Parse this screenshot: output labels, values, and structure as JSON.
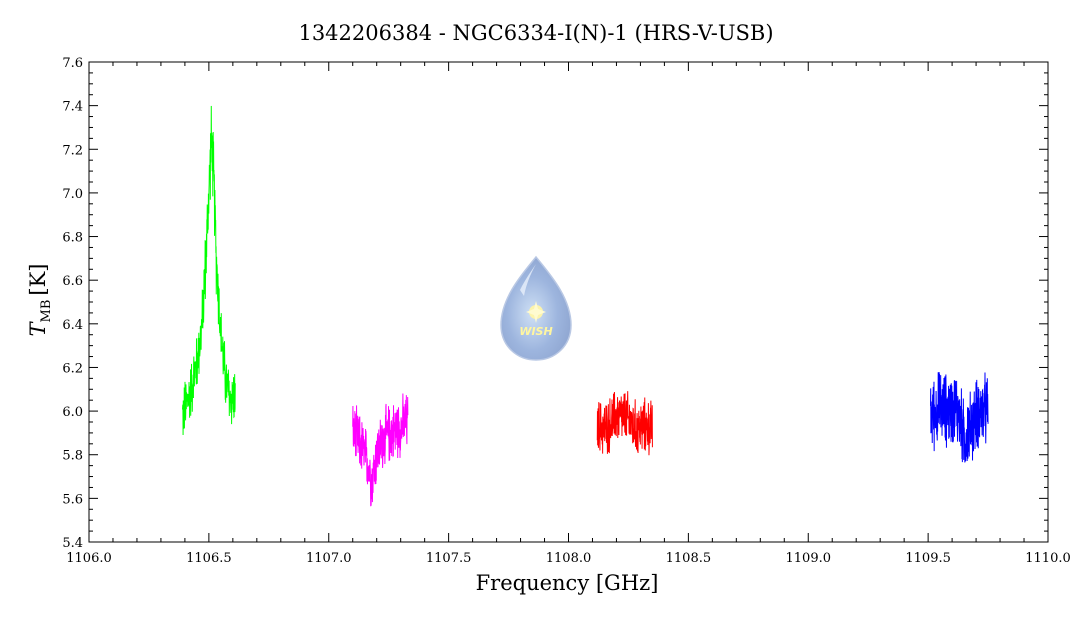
{
  "chart_data": {
    "type": "line",
    "title": "1342206384 - NGC6334-I(N)-1 (HRS-V-USB)",
    "xlabel": "Frequency [GHz]",
    "ylabel_main": "T",
    "ylabel_sub": "MB",
    "ylabel_unit": "[K]",
    "xlim": [
      1106.0,
      1110.0
    ],
    "ylim": [
      5.4,
      7.6
    ],
    "xticks": [
      "1106.0",
      "1106.5",
      "1107.0",
      "1107.5",
      "1108.0",
      "1108.5",
      "1109.0",
      "1109.5",
      "1110.0"
    ],
    "yticks": [
      "5.4",
      "5.6",
      "5.8",
      "6.0",
      "6.2",
      "6.4",
      "6.6",
      "6.8",
      "7.0",
      "7.2",
      "7.4",
      "7.6"
    ],
    "watermark_text": "WISH",
    "series": [
      {
        "color": "#00ff00",
        "x": [
          1106.39,
          1106.41,
          1106.43,
          1106.45,
          1106.47,
          1106.49,
          1106.5,
          1106.51,
          1106.52,
          1106.53,
          1106.55,
          1106.57,
          1106.59,
          1106.61
        ],
        "y": [
          5.98,
          6.04,
          6.12,
          6.22,
          6.38,
          6.75,
          7.0,
          7.25,
          7.08,
          6.72,
          6.35,
          6.14,
          6.05,
          6.08
        ],
        "noise": 0.16
      },
      {
        "color": "#ff00ff",
        "x": [
          1107.1,
          1107.13,
          1107.16,
          1107.18,
          1107.2,
          1107.23,
          1107.26,
          1107.3,
          1107.33
        ],
        "y": [
          5.9,
          5.85,
          5.78,
          5.68,
          5.8,
          5.88,
          5.9,
          5.93,
          5.95
        ],
        "noise": 0.16
      },
      {
        "color": "#ff0000",
        "x": [
          1108.12,
          1108.16,
          1108.2,
          1108.24,
          1108.28,
          1108.32,
          1108.35
        ],
        "y": [
          5.93,
          5.92,
          5.98,
          5.97,
          5.92,
          5.93,
          5.92
        ],
        "noise": 0.15
      },
      {
        "color": "#0000ff",
        "x": [
          1109.51,
          1109.55,
          1109.59,
          1109.62,
          1109.65,
          1109.68,
          1109.71,
          1109.75
        ],
        "y": [
          5.98,
          6.02,
          6.0,
          6.02,
          5.88,
          5.93,
          6.0,
          6.0
        ],
        "noise": 0.2
      }
    ]
  }
}
